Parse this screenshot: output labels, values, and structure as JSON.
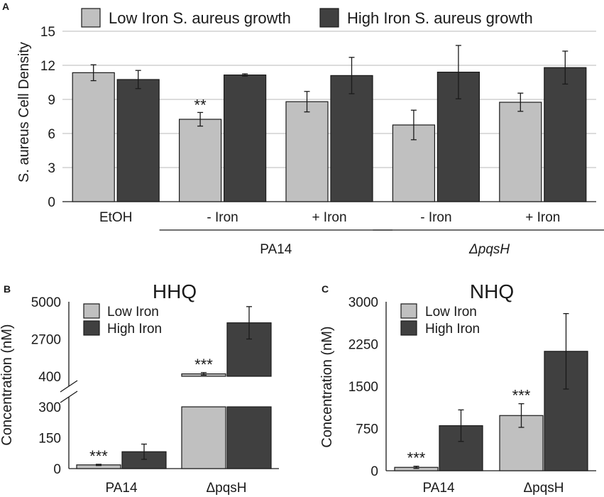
{
  "chart_data": [
    {
      "panel": "A",
      "type": "bar",
      "title": "",
      "ylabel": "S. aureus Cell Density",
      "ylim": [
        0,
        15
      ],
      "yticks": [
        0,
        3,
        6,
        9,
        12,
        15
      ],
      "grid": true,
      "legend_position": "top",
      "categories": [
        "EtOH",
        "- Iron",
        "+ Iron",
        "- Iron",
        "+ Iron"
      ],
      "groups": [
        {
          "label": "PA14",
          "italic": false,
          "categories": [
            1,
            2
          ]
        },
        {
          "label": "ΔpqsH",
          "italic": true,
          "categories": [
            3,
            4
          ]
        }
      ],
      "series": [
        {
          "name": "Low Iron S. aureus growth",
          "color": "#c0c0c0",
          "values": [
            11.35,
            7.25,
            8.8,
            6.75,
            8.75
          ],
          "errors": [
            0.7,
            0.6,
            0.9,
            1.3,
            0.8
          ]
        },
        {
          "name": "High Iron S. aureus growth",
          "color": "#404040",
          "values": [
            10.75,
            11.15,
            11.1,
            11.4,
            11.8
          ],
          "errors": [
            0.8,
            0.1,
            1.6,
            2.35,
            1.45
          ]
        }
      ],
      "annotations": [
        {
          "category": 1,
          "series": 0,
          "text": "**"
        }
      ]
    },
    {
      "panel": "B",
      "type": "bar",
      "title": "HHQ",
      "ylabel": "Concentration (nM)",
      "broken_axis": true,
      "lower_ylim": [
        0,
        300
      ],
      "lower_yticks": [
        0,
        150,
        300
      ],
      "upper_ylim": [
        400,
        5000
      ],
      "upper_yticks": [
        400,
        2700,
        5000
      ],
      "categories": [
        "PA14",
        "ΔpqsH"
      ],
      "series": [
        {
          "name": "Low Iron",
          "color": "#c0c0c0",
          "values": [
            18,
            550
          ],
          "errors": [
            3,
            80
          ]
        },
        {
          "name": "High Iron",
          "color": "#404040",
          "values": [
            82,
            3700
          ],
          "errors": [
            37,
            1000
          ]
        }
      ],
      "annotations": [
        {
          "category": 0,
          "series": 0,
          "text": "***"
        },
        {
          "category": 1,
          "series": 0,
          "text": "***"
        }
      ]
    },
    {
      "panel": "C",
      "type": "bar",
      "title": "NHQ",
      "ylabel": "Concentration (nM)",
      "ylim": [
        0,
        3000
      ],
      "yticks": [
        0,
        750,
        1500,
        2250,
        3000
      ],
      "categories": [
        "PA14",
        "ΔpqsH"
      ],
      "series": [
        {
          "name": "Low Iron",
          "color": "#c0c0c0",
          "values": [
            60,
            980
          ],
          "errors": [
            20,
            210
          ]
        },
        {
          "name": "High Iron",
          "color": "#404040",
          "values": [
            800,
            2120
          ],
          "errors": [
            280,
            670
          ]
        }
      ],
      "annotations": [
        {
          "category": 0,
          "series": 0,
          "text": "***"
        },
        {
          "category": 1,
          "series": 0,
          "text": "***"
        }
      ]
    }
  ]
}
